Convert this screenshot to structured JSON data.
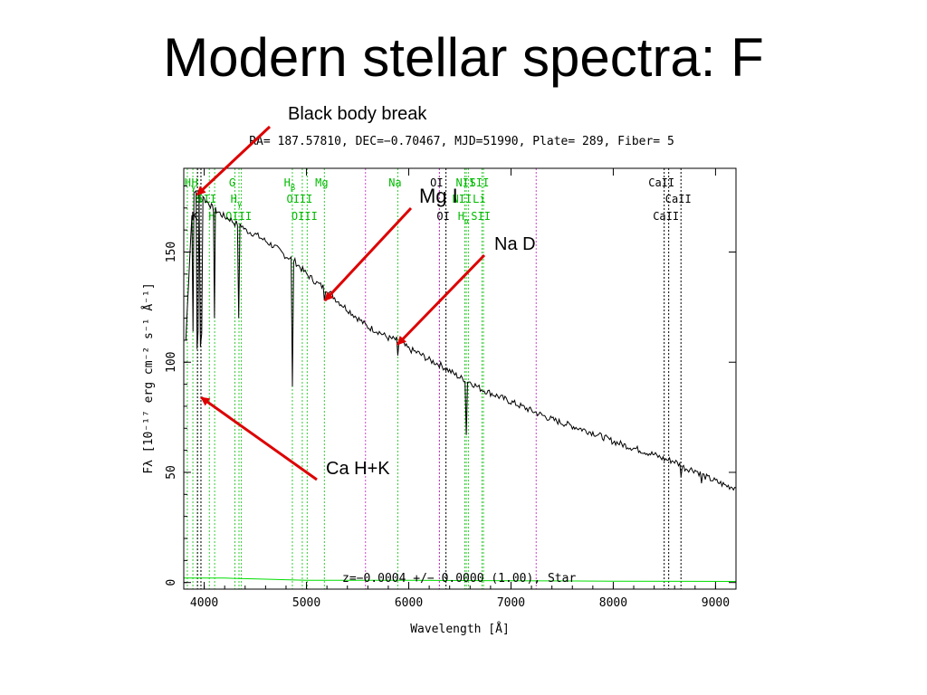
{
  "slide": {
    "title": "Modern stellar spectra: F"
  },
  "chart_data": {
    "type": "line",
    "title": "RA= 187.57810, DEC=−0.70467, MJD=51990, Plate= 289, Fiber= 5",
    "xlabel": "Wavelength [Å]",
    "ylabel": "Fλ [10⁻¹⁷ erg cm⁻² s⁻¹ Å⁻¹]",
    "xlim": [
      3800,
      9200
    ],
    "ylim": [
      -3,
      188
    ],
    "x_ticks": [
      4000,
      5000,
      6000,
      7000,
      8000,
      9000
    ],
    "y_ticks": [
      0,
      50,
      100,
      150
    ],
    "x_tick_labels": [
      "4000",
      "5000",
      "6000",
      "7000",
      "8000",
      "9000"
    ],
    "y_tick_labels": [
      "0",
      "50",
      "100",
      "150"
    ],
    "grid": false,
    "fit_text": "z=−0.0004 +/− 0.0000 (1.00), Star",
    "series": [
      {
        "name": "",
        "color": "#000000",
        "x": [
          3820,
          3860,
          3890,
          3920,
          3950,
          3975,
          4000,
          4050,
          4080,
          4110,
          4140,
          4200,
          4250,
          4300,
          4350,
          4400,
          4450,
          4500,
          4600,
          4700,
          4800,
          4862,
          4900,
          5000,
          5100,
          5200,
          5300,
          5400,
          5500,
          5600,
          5700,
          5800,
          5893,
          6000,
          6100,
          6200,
          6300,
          6400,
          6500,
          6563,
          6600,
          6700,
          6800,
          7000,
          7200,
          7400,
          7600,
          7800,
          8000,
          8200,
          8400,
          8500,
          8600,
          8700,
          8800,
          8900,
          9000,
          9100,
          9200
        ],
        "y": [
          110,
          150,
          175,
          178,
          176,
          178,
          174,
          172,
          170,
          169,
          168,
          166,
          165,
          163,
          163,
          160,
          159,
          158,
          155,
          152,
          148,
          147,
          145,
          140,
          136,
          133,
          128,
          124,
          120,
          116,
          114,
          111,
          110,
          106,
          104,
          101,
          99,
          96,
          93,
          92,
          91,
          88,
          86,
          82,
          78,
          74,
          71,
          68,
          64,
          61,
          58,
          56,
          55,
          52,
          51,
          48,
          46,
          44,
          43
        ]
      },
      {
        "name": "",
        "color": "#00dd00",
        "x": [
          3800,
          4200,
          4600,
          5000,
          6000,
          7000,
          8000,
          9200
        ],
        "y": [
          2,
          2,
          1.5,
          1,
          1,
          0.8,
          0.6,
          0.5
        ]
      }
    ],
    "absorption_lines": [
      {
        "x": 3934,
        "y": 90
      },
      {
        "x": 3968,
        "y": 85
      },
      {
        "x": 3889,
        "y": 110
      },
      {
        "x": 4102,
        "y": 112
      },
      {
        "x": 4340,
        "y": 110
      },
      {
        "x": 4862,
        "y": 89
      },
      {
        "x": 5175,
        "y": 128
      },
      {
        "x": 5893,
        "y": 103
      },
      {
        "x": 6563,
        "y": 67
      },
      {
        "x": 8498,
        "y": 48
      },
      {
        "x": 8542,
        "y": 47
      },
      {
        "x": 8662,
        "y": 46
      },
      {
        "x": 8862,
        "y": 43
      },
      {
        "x": 9014,
        "y": 42
      }
    ],
    "line_markers": [
      {
        "x": 3889,
        "label": "H",
        "sub": "γ",
        "color": "#00bb00",
        "row": 0
      },
      {
        "x": 3934,
        "label": "H",
        "color": "#00bb00",
        "row": 0
      },
      {
        "x": 4300,
        "label": "G",
        "color": "#00bb00",
        "row": 0
      },
      {
        "x": 4862,
        "label": "H",
        "sub": "β",
        "color": "#00bb00",
        "row": 0
      },
      {
        "x": 5175,
        "label": "Mg",
        "color": "#00bb00",
        "row": 0
      },
      {
        "x": 5893,
        "label": "Na",
        "color": "#00bb00",
        "row": 0
      },
      {
        "x": 6300,
        "label": "OI",
        "color": "#000000",
        "row": 0
      },
      {
        "x": 6583,
        "label": "NII",
        "color": "#00bb00",
        "row": 0
      },
      {
        "x": 6717,
        "label": "SII",
        "color": "#00bb00",
        "row": 0
      },
      {
        "x": 8498,
        "label": "CaII",
        "color": "#000000",
        "row": 0
      },
      {
        "x": 3968,
        "label": "H",
        "color": "#00bb00",
        "row": 1
      },
      {
        "x": 4050,
        "label": "SII",
        "color": "#00bb00",
        "row": 1
      },
      {
        "x": 4340,
        "label": "H",
        "sub": "γ",
        "color": "#00bb00",
        "row": 1
      },
      {
        "x": 4959,
        "label": "OIII",
        "color": "#00bb00",
        "row": 1
      },
      {
        "x": 6548,
        "label": "NII",
        "color": "#00bb00",
        "row": 1
      },
      {
        "x": 6716,
        "label": "Li",
        "color": "#00bb00",
        "row": 1
      },
      {
        "x": 8662,
        "label": "CaII",
        "color": "#000000",
        "row": 1
      },
      {
        "x": 3934,
        "label": "K",
        "color": "#000000",
        "row": 2
      },
      {
        "x": 4101,
        "label": "H",
        "color": "#00bb00",
        "row": 2
      },
      {
        "x": 4363,
        "label": "OIII",
        "color": "#00bb00",
        "row": 2
      },
      {
        "x": 5007,
        "label": "OIII",
        "color": "#00bb00",
        "row": 2
      },
      {
        "x": 6364,
        "label": "OI",
        "color": "#000000",
        "row": 2
      },
      {
        "x": 6563,
        "label": "H",
        "sub": "α",
        "color": "#00bb00",
        "row": 2
      },
      {
        "x": 6731,
        "label": "SII",
        "color": "#00bb00",
        "row": 2
      },
      {
        "x": 8542,
        "label": "CaII",
        "color": "#000000",
        "row": 2
      }
    ],
    "marker_line_x": {
      "green": [
        3835,
        3889,
        3934,
        3968,
        4050,
        4102,
        4300,
        4340,
        4363,
        4862,
        4959,
        5007,
        5175,
        5893,
        6548,
        6563,
        6583,
        6716,
        6731
      ],
      "black": [
        3934,
        3968,
        6300,
        6364,
        8498,
        8542,
        8662
      ],
      "magenta": [
        5577,
        6300,
        7246
      ]
    },
    "annotations": [
      {
        "label": "Black body break",
        "tip_x": 3930,
        "tip_y": 176
      },
      {
        "label": "Mg I",
        "tip_x": 5180,
        "tip_y": 128
      },
      {
        "label": "Na D",
        "tip_x": 5890,
        "tip_y": 108
      },
      {
        "label": "Ca H+K",
        "tip_x": 3970,
        "tip_y": 84
      }
    ],
    "annotation_color": "#dd0000"
  }
}
